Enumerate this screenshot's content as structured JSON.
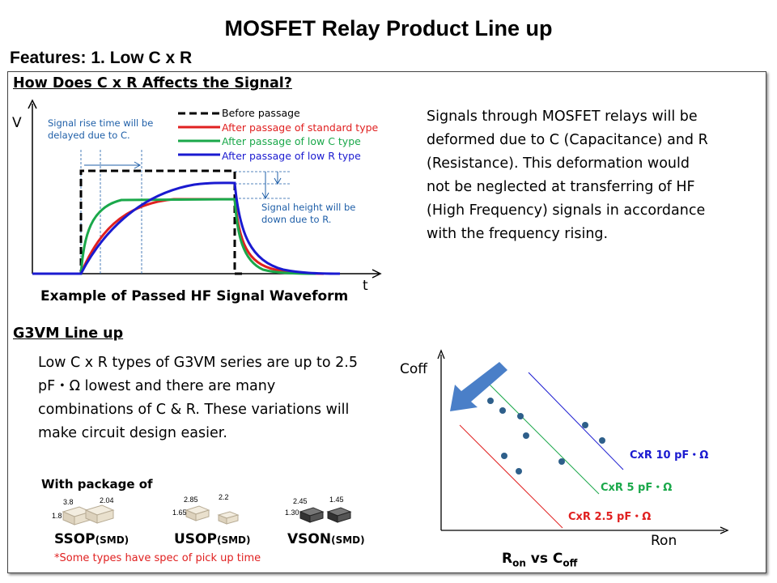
{
  "page": {
    "title": "MOSFET Relay Product Line up",
    "features": "Features: 1.  Low C x R"
  },
  "signal_section": {
    "title": "How Does C x R  Affects the Signal?",
    "axis_v": "V",
    "axis_t": "t",
    "rise_note": [
      "Signal rise time will be",
      "delayed due to C."
    ],
    "height_note": [
      "Signal height will be",
      "down due to R."
    ],
    "legend": [
      {
        "label": "Before passage",
        "color": "#000000"
      },
      {
        "label": "After passage of  standard type",
        "color": "#e02020"
      },
      {
        "label": "After passage of low C type",
        "color": "#1aa84a"
      },
      {
        "label": "After passage of low R type",
        "color": "#1a1ad0"
      }
    ],
    "caption": "Example of Passed HF Signal Waveform",
    "description_lines": [
      "Signals through MOSFET relays will be",
      "deformed due to C (Capacitance) and R",
      "(Resistance). This deformation would",
      "not be neglected at transferring of HF",
      "(High Frequency) signals in accordance",
      "with the frequency rising."
    ]
  },
  "lineup_section": {
    "title": "G3VM Line up",
    "description_lines": [
      "Low C x R types of G3VM series are up to 2.5",
      "pF・Ω lowest and there are many",
      "combinations of C & R. These variations will",
      "make circuit design easier."
    ],
    "package_heading": "With package of",
    "packages": [
      {
        "name": "SSOP",
        "suffix": "(SMD)",
        "dims": [
          "3.8",
          "2.04",
          "1.8"
        ]
      },
      {
        "name": "USOP",
        "suffix": "(SMD)",
        "dims": [
          "2.85",
          "2.2",
          "1.65"
        ]
      },
      {
        "name": "VSON",
        "suffix": "(SMD)",
        "dims": [
          "2.45",
          "1.45",
          "1.30"
        ]
      }
    ],
    "note": "*Some types have spec of pick up time"
  },
  "ron_coff_chart": {
    "y_label": "Coff",
    "x_label": "Ron",
    "caption_main_r": "R",
    "caption_sub_r": "on",
    "caption_mid": " vs C",
    "caption_sub_c": "off",
    "lines": [
      {
        "label": "CxR  10 pF・Ω",
        "color": "#1a1ad0"
      },
      {
        "label": "CxR  5 pF・Ω",
        "color": "#1aa84a"
      },
      {
        "label": "CxR  2.5 pF・Ω",
        "color": "#e02020"
      }
    ],
    "arrow_color": "#4a7fc8",
    "point_color": "#2e5f8a"
  }
}
